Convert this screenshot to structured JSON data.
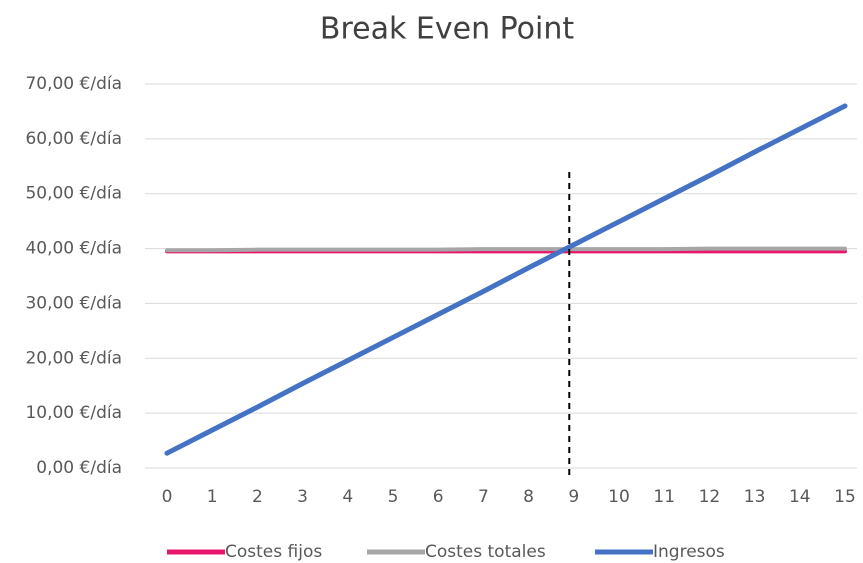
{
  "chart_data": {
    "type": "line",
    "title": "Break Even Point",
    "x": [
      0,
      1,
      2,
      3,
      4,
      5,
      6,
      7,
      8,
      9,
      10,
      11,
      12,
      13,
      14,
      15
    ],
    "xlim": [
      0,
      15
    ],
    "xticks": [
      0,
      1,
      2,
      3,
      4,
      5,
      6,
      7,
      8,
      9,
      10,
      11,
      12,
      13,
      14,
      15
    ],
    "ylim": [
      0,
      70
    ],
    "yticks": [
      {
        "value": 0,
        "label": "0,00 €/día"
      },
      {
        "value": 10,
        "label": "10,00 €/día"
      },
      {
        "value": 20,
        "label": "20,00 €/día"
      },
      {
        "value": 30,
        "label": "30,00 €/día"
      },
      {
        "value": 40,
        "label": "40,00 €/día"
      },
      {
        "value": 50,
        "label": "50,00 €/día"
      },
      {
        "value": 60,
        "label": "60,00 €/día"
      },
      {
        "value": 70,
        "label": "70,00 €/día"
      }
    ],
    "grid": true,
    "legend": "bottom",
    "break_even_x": 8.9,
    "series": [
      {
        "name": "Costes fijos",
        "color": "#e8176b",
        "values": [
          39.5,
          39.5,
          39.5,
          39.5,
          39.5,
          39.5,
          39.5,
          39.5,
          39.5,
          39.5,
          39.5,
          39.5,
          39.5,
          39.5,
          39.5,
          39.5
        ]
      },
      {
        "name": "Costes totales",
        "color": "#a6a6a6",
        "values": [
          39.7,
          39.7,
          39.8,
          39.8,
          39.8,
          39.8,
          39.8,
          39.9,
          39.9,
          39.9,
          39.9,
          39.9,
          40.0,
          40.0,
          40.0,
          40.0
        ]
      },
      {
        "name": "Ingresos",
        "color": "#4472c4",
        "values": [
          2.7,
          6.9,
          11.1,
          15.4,
          19.6,
          23.8,
          28.0,
          32.2,
          36.5,
          40.7,
          44.9,
          49.1,
          53.3,
          57.6,
          61.8,
          66.0
        ]
      }
    ]
  }
}
